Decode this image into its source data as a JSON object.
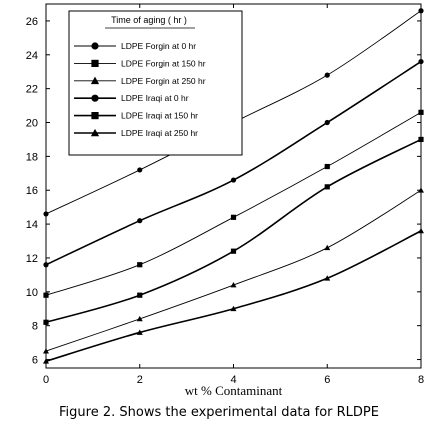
{
  "caption": "Figure 2. Shows the experimental data for RLDPE",
  "chart_data": {
    "type": "line",
    "xlabel": "wt % Contaminant",
    "ylabel": "",
    "xlim": [
      0,
      8
    ],
    "ylim": [
      5.5,
      27
    ],
    "xticks": [
      0,
      2,
      4,
      6,
      8
    ],
    "yticks": [
      6,
      8,
      10,
      12,
      14,
      16,
      18,
      20,
      22,
      24,
      26
    ],
    "grid": false,
    "legend": {
      "title": "Time of aging ( hr )",
      "placement": "top-left"
    },
    "series": [
      {
        "name": "LDPE Forgin at 0 hr",
        "marker": "circle",
        "marker_size": "small",
        "line_weight": "thin",
        "x": [
          0,
          2,
          4,
          6,
          8
        ],
        "values": [
          14.6,
          17.2,
          20.0,
          22.8,
          26.6
        ]
      },
      {
        "name": "LDPE Forgin at 150 hr",
        "marker": "square",
        "marker_size": "small",
        "line_weight": "thin",
        "x": [
          0,
          2,
          4,
          6,
          8
        ],
        "values": [
          9.8,
          11.6,
          14.4,
          17.4,
          20.6
        ]
      },
      {
        "name": "LDPE Forgin at 250 hr",
        "marker": "triangle",
        "marker_size": "small",
        "line_weight": "thin",
        "x": [
          0,
          2,
          4,
          6,
          8
        ],
        "values": [
          6.5,
          8.4,
          10.4,
          12.6,
          16.0
        ]
      },
      {
        "name": "LDPE Iraqi at 0 hr",
        "marker": "circle",
        "marker_size": "small",
        "line_weight": "thick",
        "x": [
          0,
          2,
          4,
          6,
          8
        ],
        "values": [
          11.6,
          14.2,
          16.6,
          20.0,
          23.6
        ]
      },
      {
        "name": "LDPE Iraqi at 150 hr",
        "marker": "square",
        "marker_size": "small",
        "line_weight": "thick",
        "x": [
          0,
          2,
          4,
          6,
          8
        ],
        "values": [
          8.2,
          9.8,
          12.4,
          16.2,
          19.0
        ]
      },
      {
        "name": "LDPE Iraqi at 250 hr",
        "marker": "triangle",
        "marker_size": "small",
        "line_weight": "thick",
        "x": [
          0,
          2,
          4,
          6,
          8
        ],
        "values": [
          5.9,
          7.6,
          9.0,
          10.8,
          13.6
        ]
      }
    ]
  }
}
